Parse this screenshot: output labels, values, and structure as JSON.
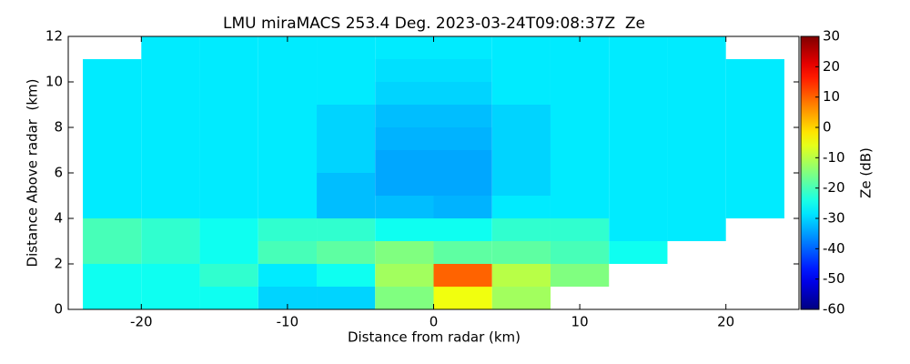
{
  "chart_data": {
    "type": "heatmap",
    "title": "LMU miraMACS 253.4 Deg. 2023-03-24T09:08:37Z  Ze",
    "xlabel": "Distance from radar (km)",
    "ylabel": "Distance Above radar  (km)",
    "xlim": [
      -25,
      25
    ],
    "ylim": [
      0,
      12
    ],
    "xticks": [
      -20,
      -10,
      0,
      10,
      20
    ],
    "yticks": [
      0,
      2,
      4,
      6,
      8,
      10,
      12
    ],
    "colormap": "jet",
    "colorbar": {
      "label": "Ze (dB)",
      "lim": [
        -60,
        30
      ],
      "ticks": [
        -60,
        -50,
        -40,
        -30,
        -20,
        -10,
        0,
        10,
        20,
        30
      ]
    },
    "x_edges": [
      -24,
      -20,
      -16,
      -12,
      -8,
      -4,
      0,
      4,
      8,
      12,
      16,
      20,
      24
    ],
    "y_edges": [
      0,
      1,
      2,
      3,
      4,
      5,
      6,
      7,
      8,
      9,
      10,
      11,
      12
    ],
    "z": [
      [
        -25,
        -25,
        -25,
        -30,
        -30,
        -15,
        -5,
        -12,
        null,
        null,
        null,
        null
      ],
      [
        -25,
        -25,
        -22,
        -28,
        -25,
        -12,
        10,
        -10,
        -15,
        null,
        null,
        null
      ],
      [
        -20,
        -22,
        -25,
        -20,
        -18,
        -15,
        -18,
        -18,
        -20,
        -25,
        null,
        null
      ],
      [
        -20,
        -22,
        -25,
        -22,
        -22,
        -25,
        -25,
        -22,
        -22,
        -28,
        -28,
        null
      ],
      [
        -28,
        -28,
        -28,
        -28,
        -32,
        -32,
        -33,
        -28,
        -28,
        -28,
        -28,
        -28
      ],
      [
        -28,
        -28,
        -28,
        -28,
        -32,
        -34,
        -34,
        -30,
        -28,
        -28,
        -28,
        -28
      ],
      [
        -28,
        -28,
        -28,
        -28,
        -30,
        -34,
        -34,
        -30,
        -28,
        -28,
        -28,
        -28
      ],
      [
        -28,
        -28,
        -28,
        -28,
        -30,
        -33,
        -33,
        -30,
        -28,
        -28,
        -28,
        -28
      ],
      [
        -28,
        -28,
        -28,
        -28,
        -30,
        -32,
        -32,
        -30,
        -28,
        -28,
        -28,
        -28
      ],
      [
        -28,
        -28,
        -28,
        -28,
        -28,
        -30,
        -30,
        -28,
        -28,
        -28,
        -28,
        -28
      ],
      [
        -28,
        -28,
        -28,
        -28,
        -28,
        -29,
        -29,
        -28,
        -28,
        -28,
        -28,
        -28
      ],
      [
        null,
        -28,
        -28,
        -28,
        -28,
        -28,
        -28,
        -28,
        -28,
        -28,
        -28,
        null
      ]
    ]
  }
}
